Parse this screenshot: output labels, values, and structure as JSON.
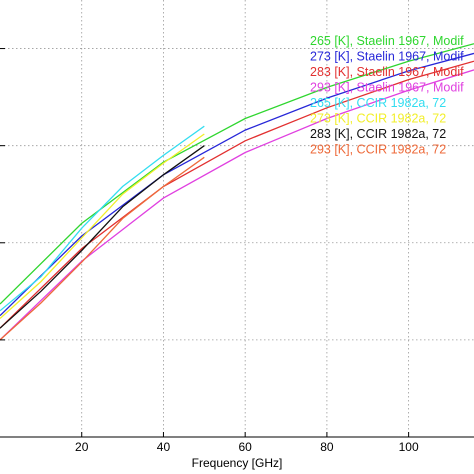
{
  "chart_data": {
    "type": "line",
    "xlabel": "Frequency [GHz]",
    "xlim": [
      0,
      116
    ],
    "ylim": [
      0,
      4.5
    ],
    "x_ticks": [
      20,
      40,
      60,
      80,
      100
    ],
    "x_tick_labels": [
      "20",
      "40",
      "60",
      "80",
      "100"
    ],
    "y_ticks": [
      1,
      2,
      3,
      4
    ],
    "grid": true,
    "legend_position": "top-right",
    "series": [
      {
        "name": "265 [K], Staelin 1967, Modif",
        "color": "#2fd62f",
        "x": [
          0,
          20,
          40,
          60,
          80,
          100,
          116
        ],
        "y": [
          1.37,
          2.2,
          2.83,
          3.28,
          3.6,
          3.87,
          4.05
        ]
      },
      {
        "name": "273 [K], Staelin 1967, Modif",
        "color": "#2727d8",
        "x": [
          0,
          20,
          40,
          60,
          80,
          100,
          116
        ],
        "y": [
          1.25,
          2.07,
          2.7,
          3.16,
          3.49,
          3.77,
          3.95
        ]
      },
      {
        "name": "283 [K], Staelin 1967, Modif",
        "color": "#e23030",
        "x": [
          0,
          20,
          40,
          60,
          80,
          100,
          116
        ],
        "y": [
          1.12,
          1.94,
          2.58,
          3.05,
          3.39,
          3.68,
          3.87
        ]
      },
      {
        "name": "293 [K], Staelin 1967, Modif",
        "color": "#e040e0",
        "x": [
          0,
          20,
          40,
          60,
          80,
          100,
          116
        ],
        "y": [
          1.0,
          1.81,
          2.46,
          2.93,
          3.28,
          3.57,
          3.78
        ]
      },
      {
        "name": "265 [K], CCIR 1982a, 72",
        "color": "#33ddf0",
        "x": [
          0,
          10,
          20,
          30,
          40,
          50
        ],
        "y": [
          1.3,
          1.65,
          2.15,
          2.58,
          2.9,
          3.2
        ]
      },
      {
        "name": "273 [K], CCIR 1982a, 72",
        "color": "#f2ef2a",
        "x": [
          0,
          10,
          20,
          30,
          40,
          50
        ],
        "y": [
          1.22,
          1.6,
          2.05,
          2.5,
          2.82,
          3.12
        ]
      },
      {
        "name": "283 [K], CCIR 1982a, 72",
        "color": "#111111",
        "x": [
          0,
          10,
          20,
          30,
          40,
          50
        ],
        "y": [
          1.12,
          1.5,
          1.92,
          2.37,
          2.7,
          3.0
        ]
      },
      {
        "name": "293 [K], CCIR 1982a, 72",
        "color": "#ee6a3a",
        "x": [
          0,
          10,
          20,
          30,
          40,
          50
        ],
        "y": [
          1.0,
          1.38,
          1.8,
          2.25,
          2.58,
          2.88
        ]
      }
    ]
  }
}
